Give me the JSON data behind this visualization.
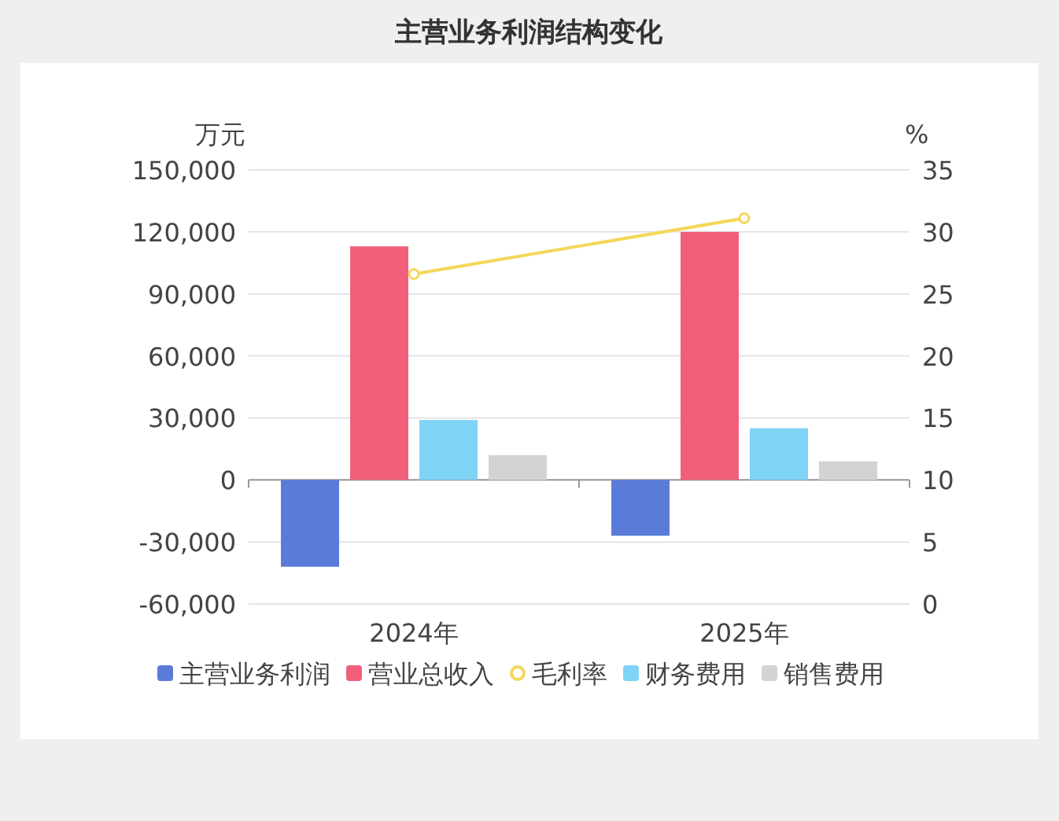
{
  "chart_data": {
    "type": "bar",
    "title": "主营业务利润结构变化",
    "ylabel": "万元",
    "y2label": "%",
    "categories": [
      "2024年",
      "2025年"
    ],
    "series": [
      {
        "name": "主营业务利润",
        "color": "#5b7bd9",
        "values": [
          -42000,
          -27000
        ]
      },
      {
        "name": "营业总收入",
        "color": "#f25f7a",
        "values": [
          113000,
          120000
        ]
      },
      {
        "name": "毛利率",
        "type": "line",
        "axis": "y2",
        "marker": "circle",
        "color": "#f5d75a",
        "values": [
          26.6,
          31.1
        ]
      },
      {
        "name": "财务费用",
        "color": "#7fd3f5",
        "values": [
          29000,
          25000
        ]
      },
      {
        "name": "销售费用",
        "color": "#d3d3d3",
        "values": [
          12000,
          9000
        ]
      }
    ],
    "ylim": [
      -60000,
      150000
    ],
    "yticks": [
      {
        "value": -60000,
        "label": "-60,000"
      },
      {
        "value": -30000,
        "label": "-30,000"
      },
      0,
      {
        "value": 30000,
        "label": "30,000"
      },
      {
        "value": 60000,
        "label": "60,000"
      },
      {
        "value": 90000,
        "label": "90,000"
      },
      {
        "value": 120000,
        "label": "120,000"
      },
      {
        "value": 150000,
        "label": "150,000"
      }
    ],
    "y2lim": [
      0,
      35
    ],
    "y2ticks": [
      0,
      5,
      10,
      15,
      20,
      25,
      30,
      35
    ],
    "grid": "y",
    "legend": "bottom"
  }
}
